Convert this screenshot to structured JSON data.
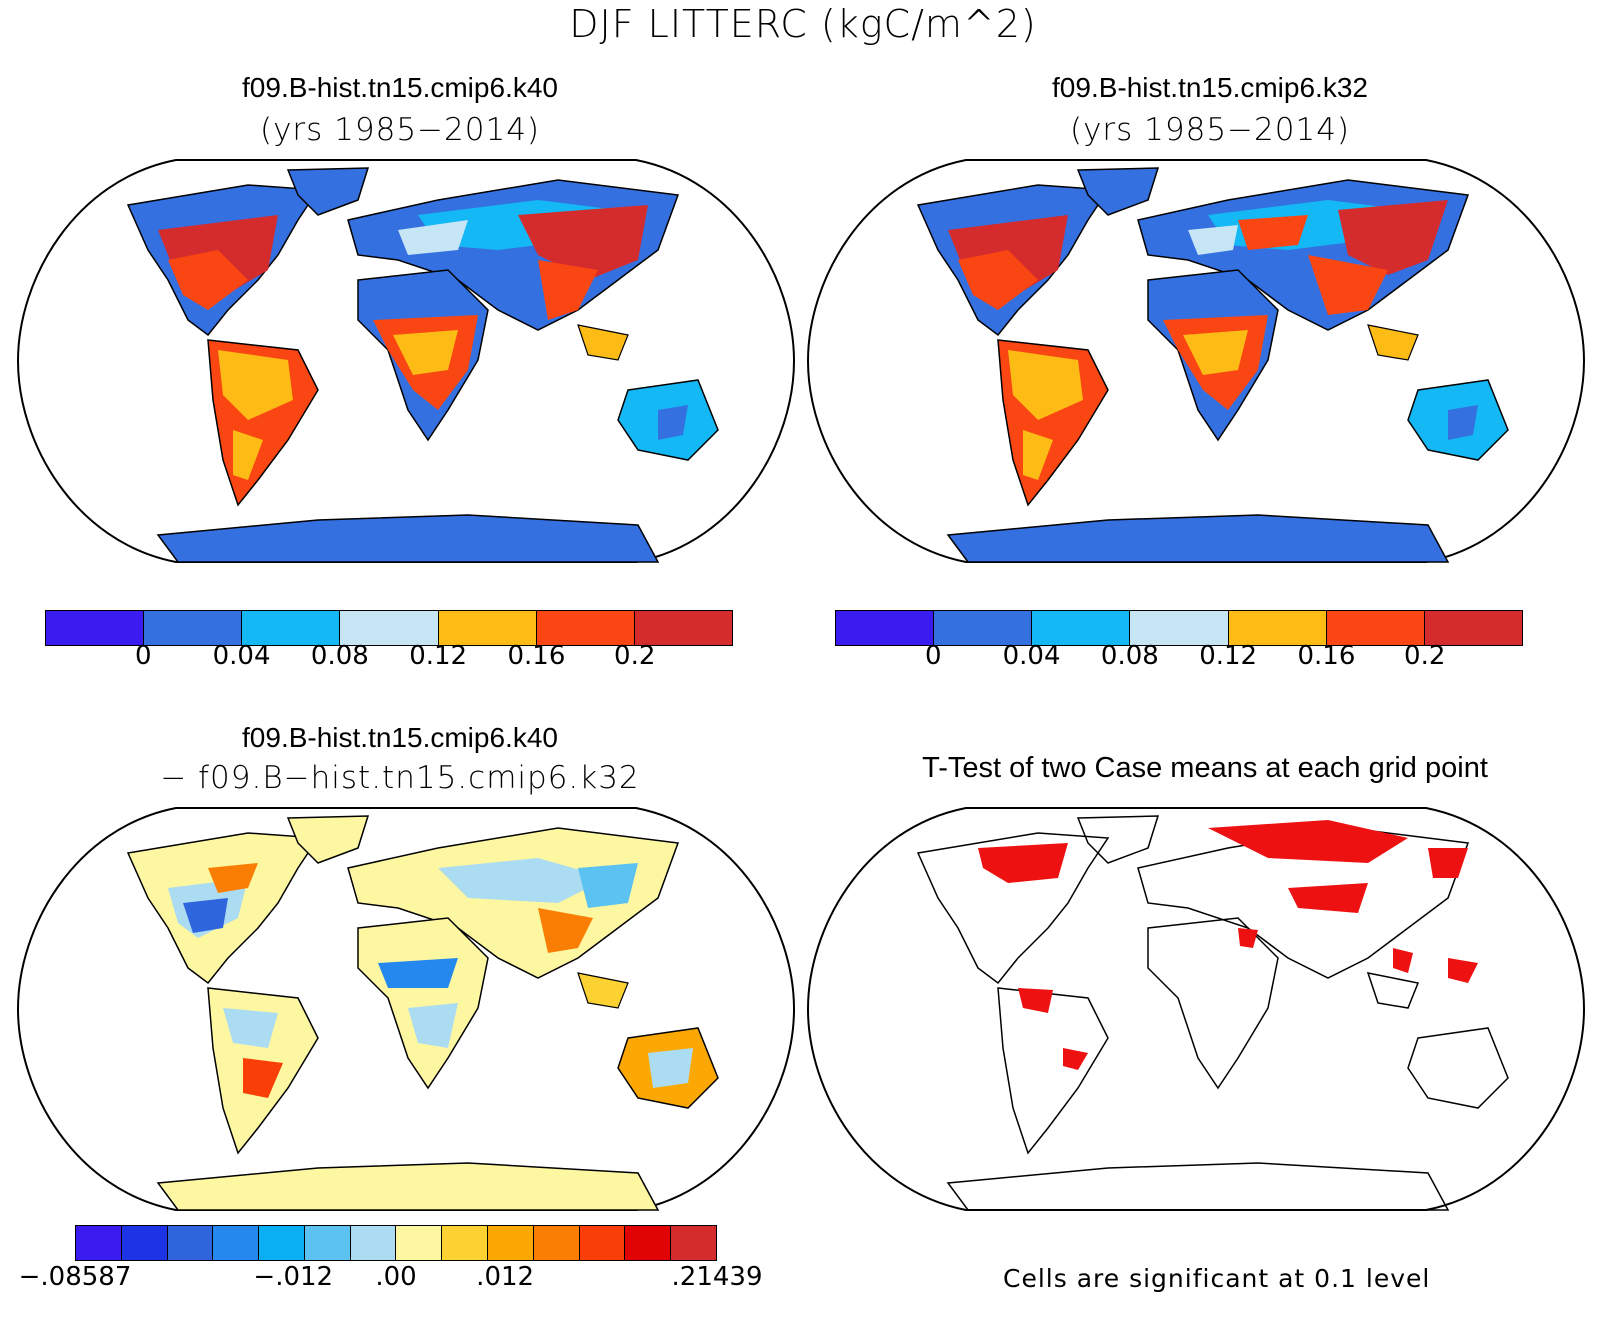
{
  "title": "DJF LITTERC (kgC/m^2)",
  "panels": {
    "top_left": {
      "title": "f09.B-hist.tn15.cmip6.k40",
      "subtitle": "(yrs 1985−2014)"
    },
    "top_right": {
      "title": "f09.B-hist.tn15.cmip6.k32",
      "subtitle": "(yrs 1985−2014)"
    },
    "bottom_left": {
      "title": "f09.B-hist.tn15.cmip6.k40",
      "subtitle": "− f09.B−hist.tn15.cmip6.k32"
    },
    "bottom_right": {
      "title": "T-Test of two Case means at each grid point",
      "note": "Cells are significant at 0.1 level"
    }
  },
  "colorbar_main": {
    "colors": [
      "#3a1cf0",
      "#3570e0",
      "#14b8f5",
      "#c6e6f6",
      "#fcbc15",
      "#fa4612",
      "#d42c2c"
    ],
    "labels": [
      "0",
      "0.04",
      "0.08",
      "0.12",
      "0.16",
      "0.2"
    ]
  },
  "colorbar_diff": {
    "colors": [
      "#3a1cf0",
      "#1c34e6",
      "#2e64dc",
      "#2488ef",
      "#0aaef3",
      "#5cc2f2",
      "#acdcf2",
      "#fdf7a2",
      "#fbd232",
      "#fca804",
      "#fa7e04",
      "#f93e07",
      "#e00404",
      "#d42c2c"
    ],
    "labels": [
      "−.08587",
      "−.012",
      ".00",
      ".012",
      ".21439"
    ]
  },
  "colors": {
    "ocean": "#ffffff",
    "significant": "#ee1111",
    "outline": "#000000"
  }
}
